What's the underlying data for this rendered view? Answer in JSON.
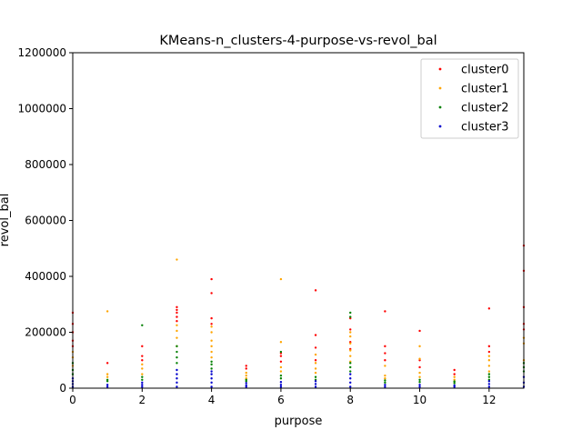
{
  "chart_data": {
    "type": "scatter",
    "title": "KMeans-n_clusters-4-purpose-vs-revol_bal",
    "xlabel": "purpose",
    "ylabel": "revol_bal",
    "xlim": [
      0,
      13
    ],
    "ylim": [
      0,
      1200000
    ],
    "xticks": [
      0,
      2,
      4,
      6,
      8,
      10,
      12
    ],
    "yticks": [
      0,
      200000,
      400000,
      600000,
      800000,
      1000000,
      1200000
    ],
    "grid": false,
    "legend": "top-right",
    "series": [
      {
        "name": "cluster0",
        "color": "#ff0000",
        "points": [
          [
            0,
            150000
          ],
          [
            0,
            170000
          ],
          [
            0,
            200000
          ],
          [
            0,
            230000
          ],
          [
            0,
            270000
          ],
          [
            1,
            90000
          ],
          [
            2,
            100000
          ],
          [
            2,
            115000
          ],
          [
            2,
            150000
          ],
          [
            3,
            240000
          ],
          [
            3,
            255000
          ],
          [
            3,
            270000
          ],
          [
            3,
            280000
          ],
          [
            3,
            290000
          ],
          [
            4,
            230000
          ],
          [
            4,
            250000
          ],
          [
            4,
            340000
          ],
          [
            4,
            390000
          ],
          [
            5,
            70000
          ],
          [
            5,
            80000
          ],
          [
            6,
            95000
          ],
          [
            6,
            115000
          ],
          [
            6,
            125000
          ],
          [
            7,
            100000
          ],
          [
            7,
            145000
          ],
          [
            7,
            190000
          ],
          [
            7,
            350000
          ],
          [
            8,
            140000
          ],
          [
            8,
            165000
          ],
          [
            8,
            210000
          ],
          [
            8,
            250000
          ],
          [
            9,
            100000
          ],
          [
            9,
            125000
          ],
          [
            9,
            150000
          ],
          [
            9,
            275000
          ],
          [
            10,
            75000
          ],
          [
            10,
            100000
          ],
          [
            10,
            205000
          ],
          [
            11,
            50000
          ],
          [
            11,
            65000
          ],
          [
            12,
            130000
          ],
          [
            12,
            150000
          ],
          [
            12,
            285000
          ],
          [
            13,
            210000
          ],
          [
            13,
            230000
          ],
          [
            13,
            290000
          ],
          [
            13,
            420000
          ],
          [
            13,
            510000
          ]
        ]
      },
      {
        "name": "cluster1",
        "color": "#ffa500",
        "points": [
          [
            0,
            80000
          ],
          [
            0,
            110000
          ],
          [
            0,
            130000
          ],
          [
            1,
            40000
          ],
          [
            1,
            50000
          ],
          [
            1,
            275000
          ],
          [
            2,
            50000
          ],
          [
            2,
            70000
          ],
          [
            2,
            85000
          ],
          [
            3,
            150000
          ],
          [
            3,
            180000
          ],
          [
            3,
            205000
          ],
          [
            3,
            225000
          ],
          [
            3,
            460000
          ],
          [
            4,
            110000
          ],
          [
            4,
            130000
          ],
          [
            4,
            150000
          ],
          [
            4,
            170000
          ],
          [
            4,
            200000
          ],
          [
            4,
            220000
          ],
          [
            5,
            35000
          ],
          [
            5,
            45000
          ],
          [
            5,
            55000
          ],
          [
            6,
            60000
          ],
          [
            6,
            75000
          ],
          [
            6,
            165000
          ],
          [
            6,
            390000
          ],
          [
            7,
            55000
          ],
          [
            7,
            70000
          ],
          [
            7,
            90000
          ],
          [
            7,
            120000
          ],
          [
            8,
            95000
          ],
          [
            8,
            115000
          ],
          [
            8,
            135000
          ],
          [
            8,
            160000
          ],
          [
            8,
            185000
          ],
          [
            8,
            200000
          ],
          [
            9,
            35000
          ],
          [
            9,
            45000
          ],
          [
            9,
            80000
          ],
          [
            10,
            40000
          ],
          [
            10,
            55000
          ],
          [
            10,
            105000
          ],
          [
            10,
            150000
          ],
          [
            11,
            30000
          ],
          [
            11,
            40000
          ],
          [
            12,
            60000
          ],
          [
            12,
            80000
          ],
          [
            12,
            100000
          ],
          [
            12,
            115000
          ],
          [
            13,
            100000
          ],
          [
            13,
            160000
          ],
          [
            13,
            180000
          ]
        ]
      },
      {
        "name": "cluster2",
        "color": "#008000",
        "points": [
          [
            0,
            50000
          ],
          [
            0,
            65000
          ],
          [
            0,
            90000
          ],
          [
            1,
            25000
          ],
          [
            1,
            30000
          ],
          [
            2,
            30000
          ],
          [
            2,
            40000
          ],
          [
            2,
            225000
          ],
          [
            3,
            90000
          ],
          [
            3,
            110000
          ],
          [
            3,
            130000
          ],
          [
            3,
            150000
          ],
          [
            4,
            70000
          ],
          [
            4,
            85000
          ],
          [
            4,
            95000
          ],
          [
            5,
            25000
          ],
          [
            5,
            30000
          ],
          [
            6,
            35000
          ],
          [
            6,
            45000
          ],
          [
            6,
            130000
          ],
          [
            7,
            30000
          ],
          [
            7,
            40000
          ],
          [
            8,
            60000
          ],
          [
            8,
            75000
          ],
          [
            8,
            90000
          ],
          [
            8,
            255000
          ],
          [
            8,
            270000
          ],
          [
            9,
            20000
          ],
          [
            9,
            28000
          ],
          [
            10,
            22000
          ],
          [
            10,
            30000
          ],
          [
            11,
            18000
          ],
          [
            11,
            24000
          ],
          [
            12,
            30000
          ],
          [
            12,
            40000
          ],
          [
            12,
            50000
          ],
          [
            13,
            60000
          ],
          [
            13,
            75000
          ],
          [
            13,
            90000
          ]
        ]
      },
      {
        "name": "cluster3",
        "color": "#0000cd",
        "points": [
          [
            0,
            5000
          ],
          [
            0,
            15000
          ],
          [
            0,
            25000
          ],
          [
            0,
            35000
          ],
          [
            1,
            5000
          ],
          [
            1,
            12000
          ],
          [
            2,
            5000
          ],
          [
            2,
            12000
          ],
          [
            2,
            20000
          ],
          [
            3,
            5000
          ],
          [
            3,
            20000
          ],
          [
            3,
            35000
          ],
          [
            3,
            50000
          ],
          [
            3,
            65000
          ],
          [
            4,
            5000
          ],
          [
            4,
            20000
          ],
          [
            4,
            35000
          ],
          [
            4,
            50000
          ],
          [
            4,
            60000
          ],
          [
            5,
            5000
          ],
          [
            5,
            10000
          ],
          [
            5,
            18000
          ],
          [
            6,
            5000
          ],
          [
            6,
            12000
          ],
          [
            6,
            22000
          ],
          [
            7,
            5000
          ],
          [
            7,
            15000
          ],
          [
            7,
            25000
          ],
          [
            8,
            5000
          ],
          [
            8,
            20000
          ],
          [
            8,
            35000
          ],
          [
            8,
            50000
          ],
          [
            9,
            5000
          ],
          [
            9,
            12000
          ],
          [
            10,
            5000
          ],
          [
            10,
            12000
          ],
          [
            11,
            5000
          ],
          [
            11,
            10000
          ],
          [
            12,
            5000
          ],
          [
            12,
            15000
          ],
          [
            12,
            25000
          ],
          [
            13,
            5000
          ],
          [
            13,
            20000
          ],
          [
            13,
            40000
          ]
        ]
      }
    ]
  }
}
